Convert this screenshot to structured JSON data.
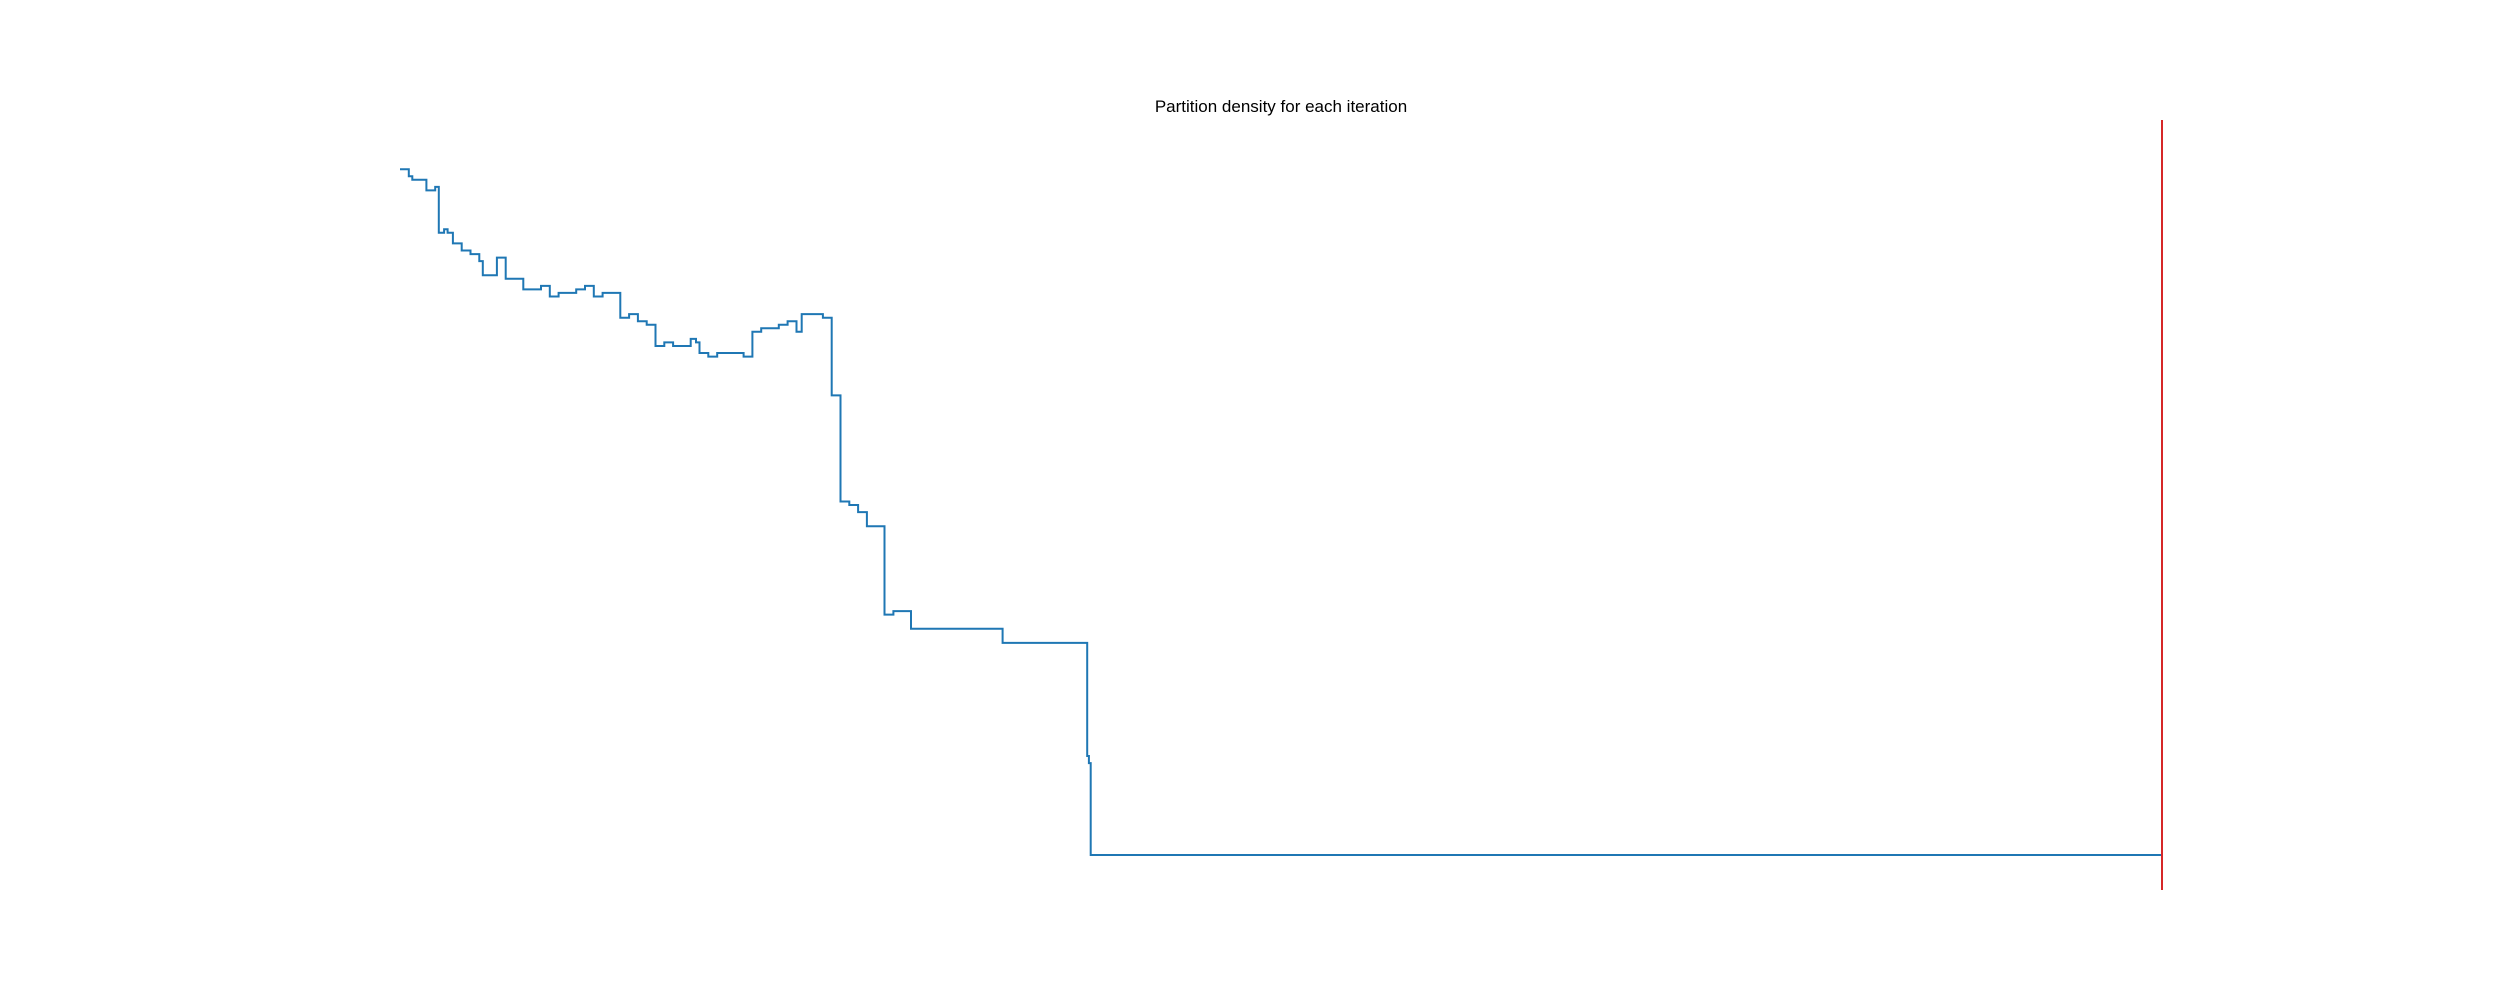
{
  "chart_data": {
    "type": "line",
    "title": "Partition density for each iteration",
    "xlabel": "",
    "ylabel": "",
    "xlim": [
      0,
      1000
    ],
    "ylim": [
      0,
      1
    ],
    "axes_visible": false,
    "grid": false,
    "legend": "none",
    "series": [
      {
        "color": "#1f77b4",
        "step": "post",
        "x": [
          0,
          5,
          7,
          10,
          15,
          20,
          22,
          25,
          27,
          30,
          35,
          40,
          43,
          45,
          47,
          55,
          60,
          70,
          75,
          80,
          85,
          90,
          95,
          100,
          105,
          110,
          115,
          120,
          125,
          130,
          135,
          140,
          145,
          150,
          155,
          160,
          165,
          168,
          170,
          175,
          180,
          185,
          190,
          195,
          200,
          205,
          210,
          215,
          220,
          225,
          228,
          230,
          235,
          240,
          245,
          250,
          255,
          260,
          265,
          270,
          275,
          280,
          285,
          290,
          295,
          300,
          305,
          310,
          315,
          320,
          325,
          330,
          335,
          340,
          341,
          342,
          345,
          350,
          355,
          360,
          365,
          370,
          375,
          380,
          385,
          388,
          390,
          391,
          392,
          1000
        ],
        "values": [
          0.97,
          0.96,
          0.955,
          0.955,
          0.94,
          0.945,
          0.88,
          0.885,
          0.88,
          0.865,
          0.855,
          0.85,
          0.85,
          0.84,
          0.82,
          0.845,
          0.815,
          0.8,
          0.8,
          0.805,
          0.79,
          0.795,
          0.795,
          0.8,
          0.805,
          0.79,
          0.795,
          0.795,
          0.76,
          0.765,
          0.755,
          0.75,
          0.72,
          0.725,
          0.72,
          0.72,
          0.73,
          0.725,
          0.71,
          0.705,
          0.71,
          0.71,
          0.71,
          0.705,
          0.74,
          0.745,
          0.745,
          0.75,
          0.755,
          0.74,
          0.765,
          0.765,
          0.765,
          0.76,
          0.65,
          0.5,
          0.495,
          0.485,
          0.465,
          0.465,
          0.34,
          0.345,
          0.345,
          0.32,
          0.32,
          0.32,
          0.32,
          0.32,
          0.32,
          0.32,
          0.32,
          0.32,
          0.32,
          0.32,
          0.32,
          0.3,
          0.3,
          0.3,
          0.3,
          0.3,
          0.3,
          0.3,
          0.3,
          0.3,
          0.3,
          0.3,
          0.14,
          0.13,
          0.0,
          0.0
        ]
      }
    ],
    "reference_line": {
      "orientation": "vertical",
      "x": 1000,
      "color": "#d62728"
    }
  }
}
